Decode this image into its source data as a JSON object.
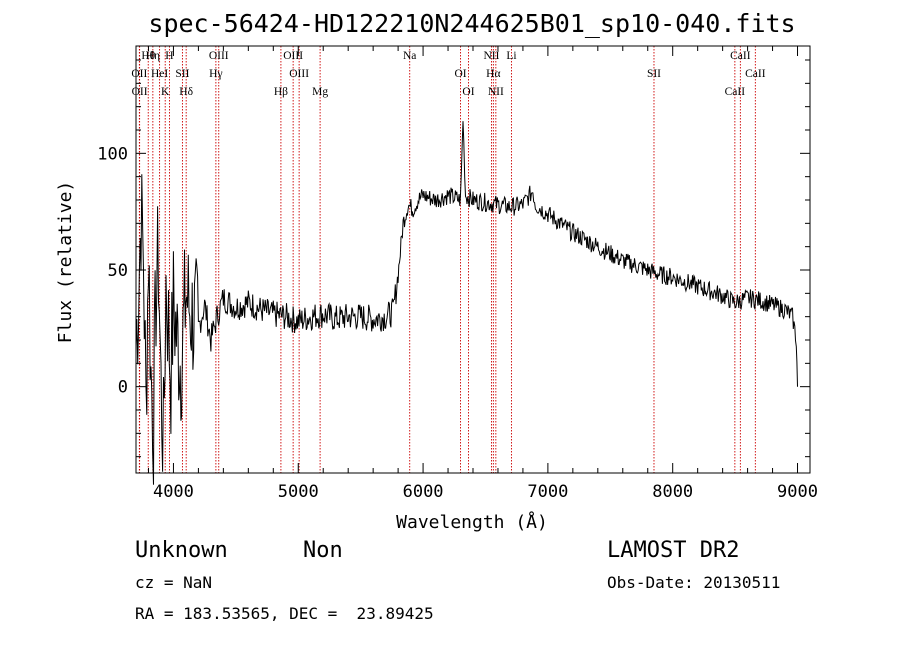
{
  "chart_data": {
    "type": "line",
    "title": "spec-56424-HD122210N244625B01_sp10-040.fits",
    "xlabel": "Wavelength (Å)",
    "ylabel": "Flux (relative)",
    "xlim": [
      3700,
      9100
    ],
    "ylim": [
      -37,
      146
    ],
    "xticks": [
      4000,
      5000,
      6000,
      7000,
      8000,
      9000
    ],
    "xtick_labels": [
      "4000",
      "5000",
      "6000",
      "7000",
      "8000",
      "9000"
    ],
    "yticks": [
      0,
      50,
      100
    ],
    "ytick_labels": [
      "0",
      "50",
      "100"
    ],
    "grid": false,
    "series": [
      {
        "values_x": [
          3700,
          3720,
          3740,
          3760,
          3780,
          3800,
          3820,
          3840,
          3860,
          3880,
          3900,
          3920,
          3940,
          3960,
          3980,
          4000,
          4030,
          4060,
          4100,
          4150,
          4200,
          4250,
          4300,
          4350,
          4400,
          4450,
          4500,
          4600,
          4700,
          4800,
          4900,
          5000,
          5100,
          5200,
          5300,
          5400,
          5500,
          5600,
          5700,
          5760,
          5800,
          5840,
          5880,
          5920,
          5960,
          6000,
          6100,
          6200,
          6300,
          6320,
          6340,
          6400,
          6500,
          6600,
          6700,
          6800,
          6880,
          6900,
          7000,
          7100,
          7200,
          7300,
          7400,
          7500,
          7600,
          7700,
          7800,
          7900,
          8000,
          8100,
          8200,
          8300,
          8400,
          8500,
          8600,
          8700,
          8800,
          8900,
          8960,
          8990,
          9000
        ],
        "values_y": [
          18,
          40,
          75,
          55,
          -10,
          60,
          5,
          -15,
          40,
          55,
          0,
          -25,
          45,
          25,
          5,
          35,
          20,
          10,
          40,
          30,
          25,
          35,
          20,
          30,
          38,
          36,
          34,
          36,
          33,
          31,
          30,
          28,
          30,
          31,
          29,
          30,
          30,
          29,
          30,
          32,
          48,
          70,
          78,
          76,
          80,
          82,
          80,
          82,
          80,
          115,
          82,
          80,
          79,
          78,
          77,
          78,
          84,
          78,
          74,
          70,
          66,
          63,
          60,
          57,
          54,
          52,
          50,
          48,
          47,
          45,
          43,
          41,
          39,
          36,
          38,
          37,
          35,
          33,
          30,
          20,
          0
        ]
      }
    ],
    "reference_lines": [
      {
        "name": "Hθ",
        "x": 3798
      },
      {
        "name": "OII",
        "x": 3727
      },
      {
        "name": "OII",
        "x": 3729
      },
      {
        "name": "Hη",
        "x": 3835
      },
      {
        "name": "HeI",
        "x": 3889
      },
      {
        "name": "K",
        "x": 3934
      },
      {
        "name": "H",
        "x": 3968
      },
      {
        "name": "SII",
        "x": 4072
      },
      {
        "name": "Hδ",
        "x": 4102
      },
      {
        "name": "OIII",
        "x": 4363
      },
      {
        "name": "Hγ",
        "x": 4340
      },
      {
        "name": "Hβ",
        "x": 4861
      },
      {
        "name": "OIII",
        "x": 4959
      },
      {
        "name": "OIII",
        "x": 5007
      },
      {
        "name": "Mg",
        "x": 5175
      },
      {
        "name": "Na",
        "x": 5893
      },
      {
        "name": "OI",
        "x": 6300
      },
      {
        "name": "OI",
        "x": 6364
      },
      {
        "name": "NII",
        "x": 6548
      },
      {
        "name": "Hα",
        "x": 6563
      },
      {
        "name": "NII",
        "x": 6583
      },
      {
        "name": "Li",
        "x": 6708
      },
      {
        "name": "SII",
        "x": 7850
      },
      {
        "name": "CaII",
        "x": 8498
      },
      {
        "name": "CaII",
        "x": 8542
      },
      {
        "name": "CaII",
        "x": 8662
      }
    ],
    "line_colors": {
      "spectrum": "#000000",
      "reference": "#cc0000"
    }
  },
  "footer": {
    "object_class": "Unknown",
    "subclass": "Non",
    "survey": "LAMOST DR2",
    "cz_text": "cz = NaN",
    "obs_date_text": "Obs-Date: 20130511",
    "coords_text": "RA = 183.53565, DEC =  23.89425"
  }
}
